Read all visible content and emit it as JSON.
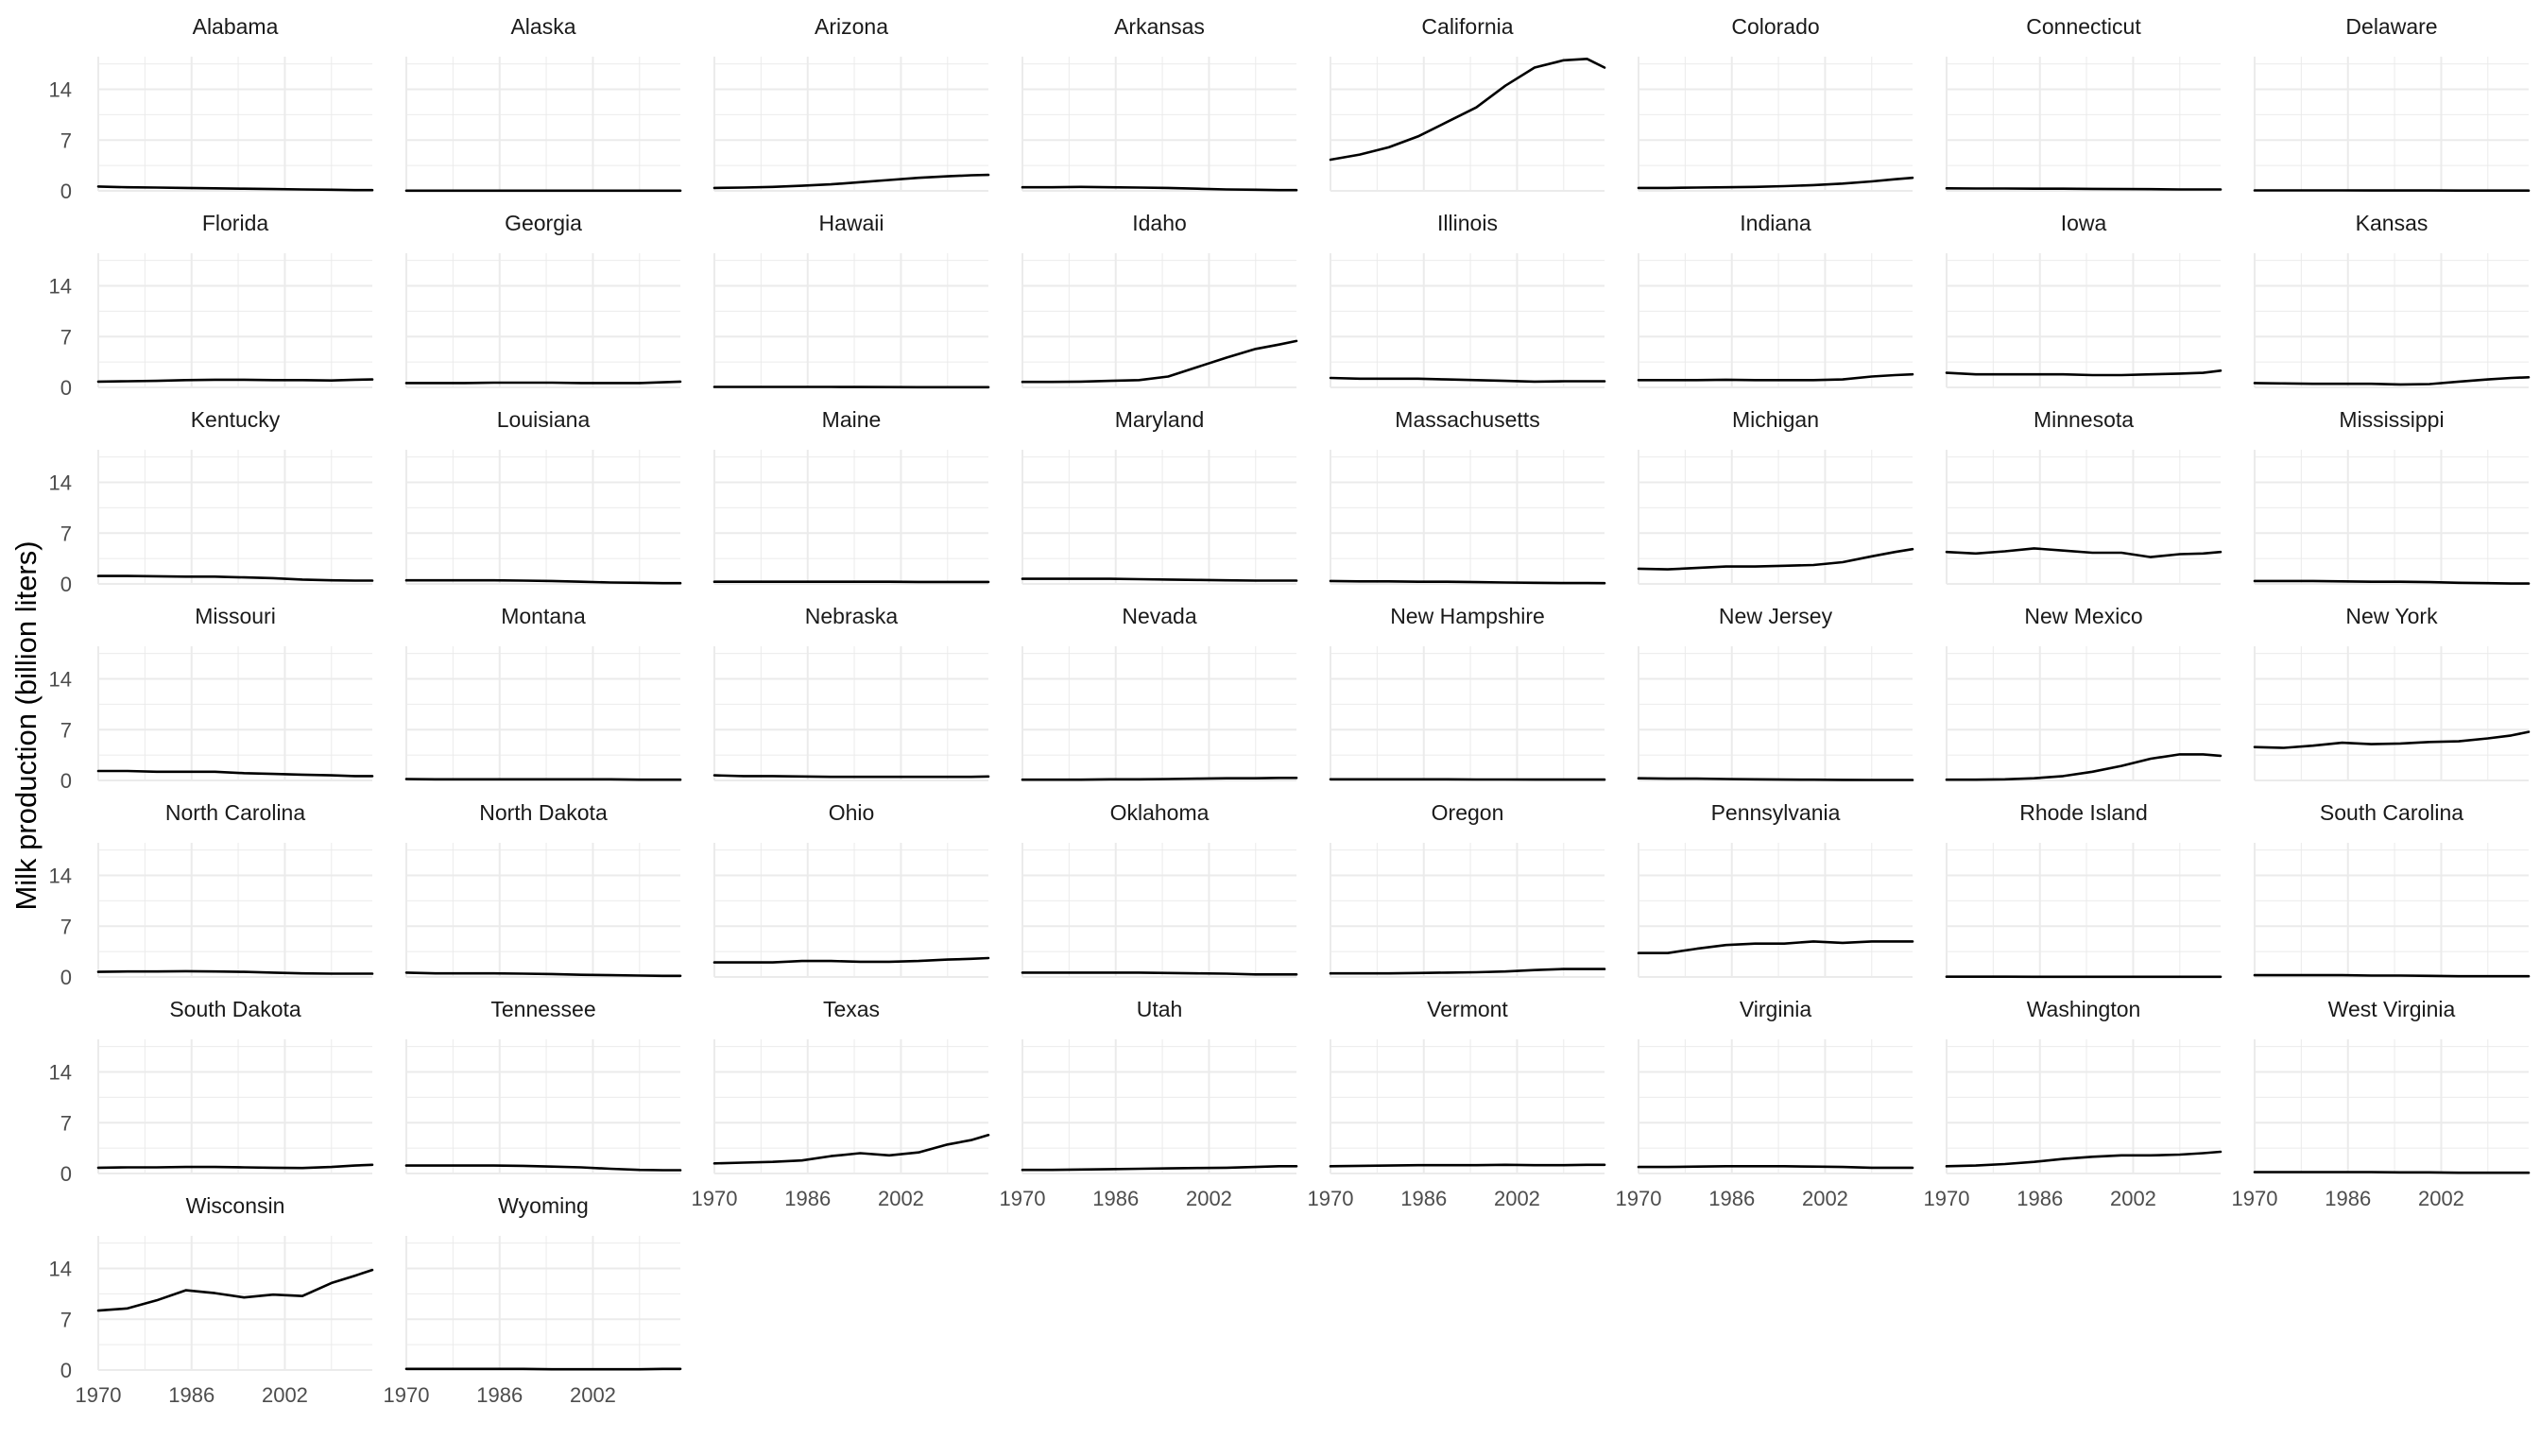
{
  "chart_data": {
    "type": "line",
    "layout": "facet-grid",
    "ylabel": "Milk production (billion liters)",
    "xlabel": "",
    "xlim": [
      1970,
      2017
    ],
    "ylim": [
      0,
      18.5
    ],
    "x_ticks": [
      1970,
      1986,
      2002
    ],
    "y_ticks": [
      0,
      7,
      14
    ],
    "grid": true,
    "line_color": "#000000",
    "grid_color": "#ebebeb",
    "x": [
      1970,
      1975,
      1980,
      1985,
      1990,
      1995,
      2000,
      2005,
      2010,
      2014,
      2017
    ],
    "series": [
      {
        "name": "Alabama",
        "values": [
          0.6,
          0.5,
          0.45,
          0.4,
          0.35,
          0.3,
          0.25,
          0.2,
          0.15,
          0.1,
          0.1
        ]
      },
      {
        "name": "Alaska",
        "values": [
          0.02,
          0.02,
          0.02,
          0.02,
          0.02,
          0.02,
          0.02,
          0.02,
          0.02,
          0.02,
          0.02
        ]
      },
      {
        "name": "Arizona",
        "values": [
          0.4,
          0.45,
          0.55,
          0.7,
          0.9,
          1.2,
          1.5,
          1.8,
          2.0,
          2.15,
          2.2
        ]
      },
      {
        "name": "Arkansas",
        "values": [
          0.5,
          0.5,
          0.55,
          0.5,
          0.45,
          0.4,
          0.3,
          0.2,
          0.15,
          0.1,
          0.1
        ]
      },
      {
        "name": "California",
        "values": [
          4.3,
          5.0,
          6.0,
          7.5,
          9.5,
          11.5,
          14.5,
          17.0,
          18.0,
          18.2,
          17.0
        ]
      },
      {
        "name": "Colorado",
        "values": [
          0.4,
          0.4,
          0.45,
          0.5,
          0.55,
          0.65,
          0.8,
          1.0,
          1.3,
          1.6,
          1.8
        ]
      },
      {
        "name": "Connecticut",
        "values": [
          0.35,
          0.33,
          0.33,
          0.3,
          0.3,
          0.27,
          0.25,
          0.23,
          0.2,
          0.2,
          0.2
        ]
      },
      {
        "name": "Delaware",
        "values": [
          0.07,
          0.06,
          0.06,
          0.06,
          0.05,
          0.05,
          0.05,
          0.04,
          0.04,
          0.04,
          0.04
        ]
      },
      {
        "name": "Florida",
        "values": [
          0.8,
          0.85,
          0.9,
          1.0,
          1.05,
          1.05,
          1.0,
          1.0,
          0.95,
          1.05,
          1.1
        ]
      },
      {
        "name": "Georgia",
        "values": [
          0.6,
          0.6,
          0.6,
          0.65,
          0.65,
          0.65,
          0.6,
          0.6,
          0.6,
          0.7,
          0.8
        ]
      },
      {
        "name": "Hawaii",
        "values": [
          0.07,
          0.07,
          0.07,
          0.07,
          0.06,
          0.05,
          0.04,
          0.03,
          0.02,
          0.02,
          0.02
        ]
      },
      {
        "name": "Idaho",
        "values": [
          0.75,
          0.75,
          0.8,
          0.9,
          1.0,
          1.5,
          2.8,
          4.1,
          5.3,
          5.9,
          6.4
        ]
      },
      {
        "name": "Illinois",
        "values": [
          1.3,
          1.2,
          1.2,
          1.2,
          1.1,
          1.0,
          0.9,
          0.8,
          0.85,
          0.85,
          0.85
        ]
      },
      {
        "name": "Indiana",
        "values": [
          1.0,
          1.0,
          1.0,
          1.05,
          1.0,
          1.0,
          1.0,
          1.1,
          1.5,
          1.7,
          1.8
        ]
      },
      {
        "name": "Iowa",
        "values": [
          2.0,
          1.8,
          1.8,
          1.8,
          1.8,
          1.7,
          1.7,
          1.8,
          1.9,
          2.0,
          2.3
        ]
      },
      {
        "name": "Kansas",
        "values": [
          0.6,
          0.55,
          0.5,
          0.5,
          0.5,
          0.4,
          0.45,
          0.8,
          1.1,
          1.3,
          1.4
        ]
      },
      {
        "name": "Kentucky",
        "values": [
          1.1,
          1.1,
          1.05,
          1.0,
          1.0,
          0.9,
          0.8,
          0.6,
          0.5,
          0.45,
          0.45
        ]
      },
      {
        "name": "Louisiana",
        "values": [
          0.5,
          0.5,
          0.5,
          0.5,
          0.45,
          0.4,
          0.3,
          0.2,
          0.15,
          0.1,
          0.1
        ]
      },
      {
        "name": "Maine",
        "values": [
          0.3,
          0.3,
          0.3,
          0.3,
          0.3,
          0.3,
          0.3,
          0.28,
          0.27,
          0.27,
          0.27
        ]
      },
      {
        "name": "Maryland",
        "values": [
          0.7,
          0.7,
          0.7,
          0.7,
          0.65,
          0.6,
          0.55,
          0.5,
          0.45,
          0.45,
          0.45
        ]
      },
      {
        "name": "Massachusetts",
        "values": [
          0.4,
          0.35,
          0.35,
          0.3,
          0.3,
          0.25,
          0.2,
          0.15,
          0.12,
          0.12,
          0.1
        ]
      },
      {
        "name": "Michigan",
        "values": [
          2.1,
          2.0,
          2.2,
          2.4,
          2.4,
          2.5,
          2.6,
          3.0,
          3.8,
          4.4,
          4.8
        ]
      },
      {
        "name": "Minnesota",
        "values": [
          4.4,
          4.2,
          4.5,
          4.9,
          4.6,
          4.3,
          4.3,
          3.7,
          4.1,
          4.2,
          4.4
        ]
      },
      {
        "name": "Mississippi",
        "values": [
          0.4,
          0.4,
          0.4,
          0.35,
          0.3,
          0.3,
          0.25,
          0.15,
          0.1,
          0.05,
          0.05
        ]
      },
      {
        "name": "Missouri",
        "values": [
          1.3,
          1.3,
          1.2,
          1.2,
          1.2,
          1.0,
          0.9,
          0.8,
          0.7,
          0.6,
          0.6
        ]
      },
      {
        "name": "Montana",
        "values": [
          0.2,
          0.15,
          0.15,
          0.15,
          0.15,
          0.15,
          0.15,
          0.15,
          0.1,
          0.1,
          0.1
        ]
      },
      {
        "name": "Nebraska",
        "values": [
          0.7,
          0.6,
          0.6,
          0.55,
          0.5,
          0.5,
          0.5,
          0.5,
          0.5,
          0.5,
          0.55
        ]
      },
      {
        "name": "Nevada",
        "values": [
          0.1,
          0.1,
          0.1,
          0.15,
          0.15,
          0.2,
          0.25,
          0.3,
          0.3,
          0.35,
          0.35
        ]
      },
      {
        "name": "New Hampshire",
        "values": [
          0.15,
          0.15,
          0.15,
          0.15,
          0.15,
          0.13,
          0.13,
          0.12,
          0.12,
          0.12,
          0.12
        ]
      },
      {
        "name": "New Jersey",
        "values": [
          0.3,
          0.25,
          0.25,
          0.2,
          0.15,
          0.12,
          0.1,
          0.08,
          0.07,
          0.06,
          0.06
        ]
      },
      {
        "name": "New Mexico",
        "values": [
          0.1,
          0.1,
          0.15,
          0.3,
          0.6,
          1.2,
          2.0,
          3.0,
          3.6,
          3.6,
          3.4
        ]
      },
      {
        "name": "New York",
        "values": [
          4.6,
          4.5,
          4.8,
          5.2,
          5.0,
          5.1,
          5.3,
          5.4,
          5.8,
          6.2,
          6.7
        ]
      },
      {
        "name": "North Carolina",
        "values": [
          0.7,
          0.75,
          0.75,
          0.8,
          0.75,
          0.7,
          0.6,
          0.5,
          0.45,
          0.45,
          0.45
        ]
      },
      {
        "name": "North Dakota",
        "values": [
          0.6,
          0.5,
          0.5,
          0.5,
          0.45,
          0.4,
          0.3,
          0.25,
          0.2,
          0.15,
          0.15
        ]
      },
      {
        "name": "Ohio",
        "values": [
          2.0,
          2.0,
          2.0,
          2.2,
          2.2,
          2.1,
          2.1,
          2.2,
          2.4,
          2.5,
          2.6
        ]
      },
      {
        "name": "Oklahoma",
        "values": [
          0.6,
          0.6,
          0.6,
          0.6,
          0.6,
          0.55,
          0.5,
          0.45,
          0.35,
          0.35,
          0.35
        ]
      },
      {
        "name": "Oregon",
        "values": [
          0.5,
          0.5,
          0.5,
          0.55,
          0.6,
          0.65,
          0.75,
          0.95,
          1.1,
          1.1,
          1.1
        ]
      },
      {
        "name": "Pennsylvania",
        "values": [
          3.3,
          3.3,
          3.9,
          4.4,
          4.6,
          4.6,
          4.9,
          4.7,
          4.9,
          4.9,
          4.9
        ]
      },
      {
        "name": "Rhode Island",
        "values": [
          0.04,
          0.04,
          0.04,
          0.03,
          0.03,
          0.03,
          0.02,
          0.02,
          0.02,
          0.02,
          0.02
        ]
      },
      {
        "name": "South Carolina",
        "values": [
          0.25,
          0.25,
          0.25,
          0.25,
          0.2,
          0.2,
          0.15,
          0.1,
          0.1,
          0.1,
          0.1
        ]
      },
      {
        "name": "South Dakota",
        "values": [
          0.8,
          0.85,
          0.85,
          0.9,
          0.9,
          0.85,
          0.8,
          0.75,
          0.9,
          1.1,
          1.2
        ]
      },
      {
        "name": "Tennessee",
        "values": [
          1.1,
          1.1,
          1.1,
          1.1,
          1.05,
          0.95,
          0.85,
          0.65,
          0.5,
          0.45,
          0.45
        ]
      },
      {
        "name": "Texas",
        "values": [
          1.4,
          1.5,
          1.6,
          1.8,
          2.4,
          2.8,
          2.5,
          2.9,
          4.0,
          4.6,
          5.3
        ]
      },
      {
        "name": "Utah",
        "values": [
          0.5,
          0.5,
          0.55,
          0.6,
          0.65,
          0.7,
          0.75,
          0.8,
          0.9,
          1.0,
          1.0
        ]
      },
      {
        "name": "Vermont",
        "values": [
          1.0,
          1.05,
          1.1,
          1.15,
          1.15,
          1.15,
          1.2,
          1.15,
          1.15,
          1.2,
          1.2
        ]
      },
      {
        "name": "Virginia",
        "values": [
          0.9,
          0.9,
          0.95,
          1.0,
          1.0,
          1.0,
          0.95,
          0.9,
          0.8,
          0.8,
          0.8
        ]
      },
      {
        "name": "Washington",
        "values": [
          1.0,
          1.1,
          1.3,
          1.6,
          2.0,
          2.3,
          2.5,
          2.5,
          2.6,
          2.8,
          3.0
        ]
      },
      {
        "name": "West Virginia",
        "values": [
          0.2,
          0.2,
          0.2,
          0.2,
          0.2,
          0.15,
          0.15,
          0.1,
          0.1,
          0.1,
          0.1
        ]
      },
      {
        "name": "Wisconsin",
        "values": [
          8.2,
          8.5,
          9.6,
          11.0,
          10.6,
          10.0,
          10.4,
          10.2,
          12.0,
          13.0,
          13.8
        ]
      },
      {
        "name": "Wyoming",
        "values": [
          0.15,
          0.15,
          0.15,
          0.15,
          0.15,
          0.1,
          0.1,
          0.1,
          0.1,
          0.15,
          0.15
        ]
      }
    ]
  }
}
